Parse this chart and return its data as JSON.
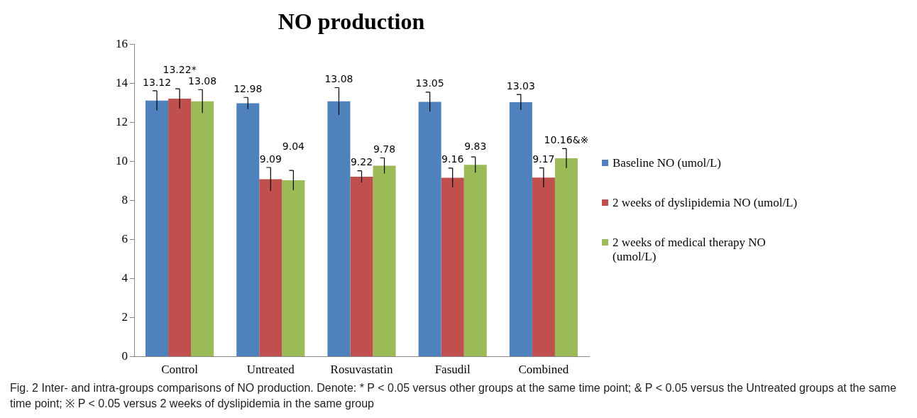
{
  "chart_data": {
    "type": "bar",
    "title": "NO production",
    "categories": [
      "Control",
      "Untreated",
      "Rosuvastatin",
      "Fasudil",
      "Combined"
    ],
    "series": [
      {
        "name": "Baseline NO (umol/L)",
        "color": "#4f81bd",
        "values": [
          13.12,
          12.98,
          13.08,
          13.05,
          13.03
        ],
        "errors": [
          0.5,
          0.3,
          0.7,
          0.5,
          0.4
        ],
        "value_labels": [
          "13.12",
          "12.98",
          "13.08",
          "13.05",
          "13.03"
        ]
      },
      {
        "name": "2 weeks of dyslipidemia NO (umol/L)",
        "color": "#c0504d",
        "values": [
          13.22,
          9.09,
          9.22,
          9.16,
          9.17
        ],
        "errors": [
          0.5,
          0.6,
          0.3,
          0.5,
          0.5
        ],
        "value_labels": [
          "13.22*",
          "9.09",
          "9.22",
          "9.16",
          "9.17"
        ]
      },
      {
        "name": "2 weeks of medical therapy NO (umol/L)",
        "color": "#9bbb59",
        "values": [
          13.08,
          9.04,
          9.78,
          9.83,
          10.16
        ],
        "errors": [
          0.6,
          0.5,
          0.4,
          0.4,
          0.5
        ],
        "value_labels": [
          "13.08",
          "9.04",
          "9.78",
          "9.83",
          "10.16&※"
        ]
      }
    ],
    "ylim": [
      0,
      16
    ],
    "yticks": [
      0,
      2,
      4,
      6,
      8,
      10,
      12,
      14,
      16
    ],
    "grid": false,
    "legend": "right",
    "annotations": [
      "Fig. 2 Inter- and intra-groups comparisons of NO production. Denote: * P < 0.05 versus other groups at the same time point; & P < 0.05 versus the Untreated groups at the same time point; ※ P < 0.05 versus 2 weeks of dyslipidemia in the same group"
    ]
  }
}
